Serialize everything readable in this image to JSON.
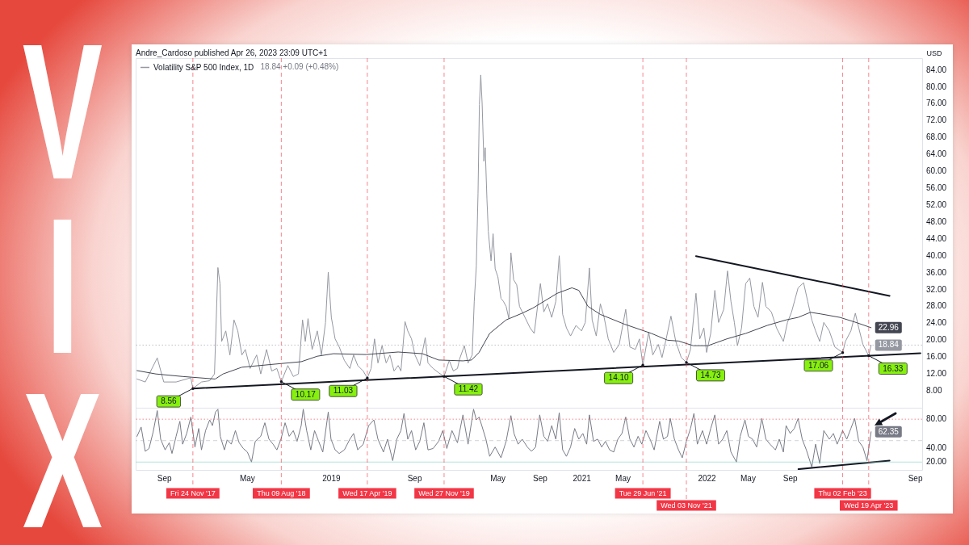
{
  "chart_data": [
    {
      "type": "line",
      "title": "VIX",
      "subtitle": "Andre_Cardoso published Apr 26, 2023 23:09 UTC+1",
      "ylabel": "USD",
      "legend": "top left",
      "tick_labels": "y",
      "xlim": [
        "2017-06-10",
        "2023-09-22"
      ],
      "ylim": [
        4,
        86.8
      ],
      "yticks": [
        {
          "value": 8,
          "label": "8.00"
        },
        {
          "value": 12,
          "label": "12.00"
        },
        {
          "value": 16,
          "label": "16.00"
        },
        {
          "value": 20,
          "label": "20.00"
        },
        {
          "value": 24,
          "label": "24.00"
        },
        {
          "value": 28,
          "label": "28.00"
        },
        {
          "value": 32,
          "label": "32.00"
        },
        {
          "value": 36,
          "label": "36.00"
        },
        {
          "value": 40,
          "label": "40.00"
        },
        {
          "value": 44,
          "label": "44.00"
        },
        {
          "value": 48,
          "label": "48.00"
        },
        {
          "value": 52,
          "label": "52.00"
        },
        {
          "value": 56,
          "label": "56.00"
        },
        {
          "value": 60,
          "label": "60.00"
        },
        {
          "value": 64,
          "label": "64.00"
        },
        {
          "value": 68,
          "label": "68.00"
        },
        {
          "value": 72,
          "label": "72.00"
        },
        {
          "value": 76,
          "label": "76.00"
        },
        {
          "value": 80,
          "label": "80.00"
        },
        {
          "value": 84,
          "label": "84.00"
        }
      ],
      "annotations": [
        "18.84 +0.09 (+0.48%)",
        {
          "text": "8.56",
          "x": "2017-11-24",
          "y": 8.56
        },
        {
          "text": "10.17",
          "x": "2018-08-09",
          "y": 10.17
        },
        {
          "text": "11.03",
          "x": "2019-04-17",
          "y": 11.03
        },
        {
          "text": "11.42",
          "x": "2019-11-27",
          "y": 11.42
        },
        {
          "text": "14.10",
          "x": "2021-06-29",
          "y": 14.1
        },
        {
          "text": "14.73",
          "x": "2021-11-03",
          "y": 14.73
        },
        {
          "text": "17.06",
          "x": "2023-02-02",
          "y": 17.06
        },
        {
          "text": "16.33",
          "x": "2023-04-19",
          "y": 16.33
        }
      ],
      "series": [
        {
          "name": "Volatility S&P 500 Index, 1D",
          "color": "#9598a1",
          "x": [
            "2017-06-14",
            "2017-07-08",
            "2017-08-12",
            "2017-08-31",
            "2017-10-06",
            "2017-11-18",
            "2017-11-24",
            "2017-12-19",
            "2018-01-12",
            "2018-01-26",
            "2018-02-05",
            "2018-02-11",
            "2018-02-16",
            "2018-02-28",
            "2018-03-12",
            "2018-03-24",
            "2018-04-04",
            "2018-04-16",
            "2018-04-26",
            "2018-05-10",
            "2018-05-29",
            "2018-06-10",
            "2018-06-27",
            "2018-07-12",
            "2018-07-27",
            "2018-08-09",
            "2018-08-28",
            "2018-09-13",
            "2018-09-28",
            "2018-10-10",
            "2018-10-18",
            "2018-10-26",
            "2018-11-07",
            "2018-11-22",
            "2018-12-04",
            "2018-12-16",
            "2018-12-24",
            "2019-01-02",
            "2019-01-13",
            "2019-01-25",
            "2019-02-09",
            "2019-02-25",
            "2019-03-08",
            "2019-03-20",
            "2019-04-05",
            "2019-04-17",
            "2019-04-28",
            "2019-05-08",
            "2019-05-18",
            "2019-05-30",
            "2019-06-11",
            "2019-06-22",
            "2019-07-04",
            "2019-07-16",
            "2019-07-24",
            "2019-08-05",
            "2019-08-13",
            "2019-08-24",
            "2019-09-03",
            "2019-09-17",
            "2019-10-03",
            "2019-10-11",
            "2019-10-26",
            "2019-11-11",
            "2019-11-27",
            "2019-12-12",
            "2019-12-24",
            "2020-01-05",
            "2020-01-11",
            "2020-01-25",
            "2020-02-05",
            "2020-02-17",
            "2020-02-23",
            "2020-02-29",
            "2020-03-05",
            "2020-03-09",
            "2020-03-13",
            "2020-03-17",
            "2020-03-22",
            "2020-03-26",
            "2020-03-31",
            "2020-04-04",
            "2020-04-12",
            "2020-04-18",
            "2020-04-24",
            "2020-05-02",
            "2020-05-11",
            "2020-05-18",
            "2020-05-26",
            "2020-06-03",
            "2020-06-09",
            "2020-06-17",
            "2020-06-26",
            "2020-07-04",
            "2020-07-20",
            "2020-08-04",
            "2020-08-16",
            "2020-09-03",
            "2020-09-13",
            "2020-09-24",
            "2020-10-06",
            "2020-10-18",
            "2020-10-28",
            "2020-11-07",
            "2020-11-18",
            "2020-11-30",
            "2020-12-16",
            "2021-01-01",
            "2021-01-12",
            "2021-01-24",
            "2021-02-01",
            "2021-02-13",
            "2021-02-25",
            "2021-03-08",
            "2021-03-20",
            "2021-04-05",
            "2021-04-21",
            "2021-05-10",
            "2021-05-22",
            "2021-06-07",
            "2021-06-19",
            "2021-06-29",
            "2021-07-16",
            "2021-07-28",
            "2021-08-13",
            "2021-08-24",
            "2021-09-05",
            "2021-09-19",
            "2021-10-03",
            "2021-10-19",
            "2021-11-03",
            "2021-11-15",
            "2021-12-01",
            "2021-12-12",
            "2021-12-24",
            "2022-01-01",
            "2022-01-13",
            "2022-01-25",
            "2022-02-05",
            "2022-02-20",
            "2022-03-03",
            "2022-03-13",
            "2022-03-23",
            "2022-04-01",
            "2022-04-13",
            "2022-04-25",
            "2022-05-07",
            "2022-05-19",
            "2022-05-31",
            "2022-06-13",
            "2022-06-23",
            "2022-07-09",
            "2022-07-24",
            "2022-08-13",
            "2022-08-25",
            "2022-09-06",
            "2022-09-25",
            "2022-10-11",
            "2022-10-23",
            "2022-11-04",
            "2022-11-15",
            "2022-11-27",
            "2022-12-09",
            "2022-12-25",
            "2023-01-10",
            "2023-02-02",
            "2023-02-10",
            "2023-02-26",
            "2023-03-11",
            "2023-03-21",
            "2023-04-02",
            "2023-04-19",
            "2023-04-26"
          ],
          "values": [
            10.8,
            10.1,
            15.8,
            10.1,
            10.1,
            11.1,
            8.56,
            10.1,
            10.4,
            12,
            37.2,
            33.4,
            19.7,
            22.2,
            16.5,
            24.8,
            22.2,
            16.5,
            17.8,
            13.3,
            16.5,
            12,
            17.8,
            12.7,
            13.3,
            10.17,
            14,
            11.4,
            12,
            24.8,
            19.7,
            25.1,
            17.8,
            22.2,
            16.5,
            24.2,
            36.1,
            25.4,
            20.3,
            18.4,
            15.2,
            13.3,
            16.5,
            14,
            12.7,
            11.03,
            13.3,
            20.3,
            14.6,
            18.7,
            14.6,
            16.5,
            12.7,
            14,
            12.7,
            24.4,
            22.2,
            20.3,
            16.5,
            14,
            20.6,
            14.6,
            13.3,
            12.3,
            11.42,
            15.2,
            12.7,
            13.3,
            15.5,
            18.7,
            14.6,
            16.5,
            29.2,
            37.5,
            54.7,
            75.8,
            82.8,
            76.1,
            62.4,
            65.6,
            53.4,
            45.8,
            38.8,
            45.2,
            36.9,
            35,
            29.9,
            29.2,
            28,
            25.1,
            40.7,
            34.3,
            33.1,
            28,
            25.4,
            22.9,
            21.6,
            33.4,
            26.7,
            28.6,
            25.4,
            29.2,
            40,
            26.1,
            22.9,
            21,
            23.5,
            22.2,
            24.2,
            37.1,
            24.8,
            21,
            28.6,
            25.4,
            20.3,
            17.1,
            19,
            27.3,
            18.4,
            17.8,
            20.3,
            14.1,
            21.9,
            16.5,
            19,
            15.9,
            20.3,
            25.7,
            19.7,
            15.9,
            14.73,
            17.8,
            31.1,
            20.3,
            22.9,
            17.1,
            21.6,
            31.8,
            24.2,
            27.3,
            36.4,
            29.2,
            24.2,
            18.7,
            22.9,
            33.4,
            34.7,
            28,
            25.4,
            33.7,
            28,
            26.7,
            22.9,
            19.7,
            24.2,
            26.7,
            32.4,
            33.6,
            29.2,
            24.8,
            22.2,
            19.7,
            24.2,
            22.2,
            18.4,
            17.06,
            19.7,
            22.2,
            26.4,
            22.9,
            19,
            16.33,
            18.84
          ],
          "value_labels": [
            null,
            null,
            null,
            null,
            null,
            null,
            null,
            null,
            null,
            null,
            null,
            null,
            null,
            null,
            null,
            null,
            null,
            null,
            null,
            null,
            null,
            null,
            null,
            null,
            null,
            null,
            null,
            null,
            null,
            null,
            null,
            null,
            null,
            null,
            null,
            null,
            null,
            null,
            null,
            null,
            null,
            null,
            null,
            null,
            null,
            null,
            null,
            null,
            null,
            null,
            null,
            null,
            null,
            null,
            null,
            null,
            null,
            null,
            null,
            null,
            null,
            null,
            null,
            null,
            null,
            null,
            null,
            null,
            null,
            null,
            null,
            null,
            null,
            null,
            null,
            null,
            null,
            null,
            null,
            null,
            null,
            null,
            null,
            null,
            null,
            null,
            null,
            null,
            null,
            null,
            null,
            null,
            null,
            null,
            null,
            null,
            null,
            null,
            null,
            null,
            null,
            null,
            null,
            null,
            null,
            null,
            null,
            null,
            null,
            null,
            null,
            null,
            null,
            null,
            null,
            null,
            null,
            null,
            null,
            null,
            null,
            null,
            null,
            null,
            null,
            null,
            null,
            null,
            null,
            null,
            null,
            null,
            null,
            null,
            null,
            null,
            null,
            null,
            null,
            null,
            null,
            null,
            null,
            null,
            null,
            null,
            null,
            null,
            null,
            null,
            null,
            null,
            null,
            null,
            null,
            null,
            null,
            null,
            null,
            null,
            null,
            null,
            null,
            null,
            null,
            null,
            null,
            null,
            null,
            null,
            null,
            null,
            "18.84"
          ]
        },
        {
          "color": "#434651",
          "x": [
            "2017-06-14",
            "2017-08-08",
            "2017-10-25",
            "2018-01-28",
            "2018-02-20",
            "2018-04-16",
            "2018-07-04",
            "2018-10-06",
            "2018-11-22",
            "2019-01-08",
            "2019-04-13",
            "2019-07-16",
            "2019-09-25",
            "2019-11-11",
            "2020-01-21",
            "2020-02-15",
            "2020-03-08",
            "2020-04-08",
            "2020-05-26",
            "2020-07-12",
            "2020-08-12",
            "2020-10-22",
            "2020-12-04",
            "2020-12-24",
            "2021-01-20",
            "2021-02-25",
            "2021-05-06",
            "2021-07-24",
            "2021-09-09",
            "2021-10-11",
            "2021-11-23",
            "2022-01-05",
            "2022-03-01",
            "2022-04-25",
            "2022-06-27",
            "2022-08-21",
            "2022-09-25",
            "2022-10-31",
            "2022-12-01",
            "2023-01-25",
            "2023-03-13",
            "2023-04-26"
          ],
          "values": [
            12.8,
            12,
            11.4,
            10.8,
            12,
            13.6,
            14.2,
            14.9,
            16.2,
            16.8,
            16.6,
            17.2,
            16.8,
            15.3,
            15.1,
            15.3,
            17.1,
            21.6,
            24.8,
            26.4,
            27.6,
            31.1,
            32.4,
            31.8,
            28,
            26.1,
            23.8,
            21.6,
            20,
            19.8,
            18.7,
            18.7,
            20.3,
            21.6,
            23.5,
            24.8,
            25.4,
            26.6,
            26.2,
            25.4,
            24.2,
            22.96
          ],
          "value_labels": [
            null,
            null,
            null,
            null,
            null,
            null,
            null,
            null,
            null,
            null,
            null,
            null,
            null,
            null,
            null,
            null,
            null,
            null,
            null,
            null,
            null,
            null,
            null,
            null,
            null,
            null,
            null,
            null,
            null,
            null,
            null,
            null,
            null,
            null,
            null,
            null,
            null,
            null,
            null,
            null,
            null,
            "22.96"
          ]
        },
        {
          "color": "#131722",
          "x": [
            "2017-11-24",
            "2023-09-17"
          ],
          "values": [
            8.56,
            16.9
          ]
        },
        {
          "color": "#131722",
          "x": [
            "2021-12-01",
            "2023-06-19"
          ],
          "values": [
            39.9,
            30.5
          ]
        }
      ],
      "ref_lines": [
        {
          "axis": "x",
          "value": "2017-11-24",
          "color": "#f23645",
          "line_style": "dashed"
        },
        {
          "axis": "x",
          "value": "2018-08-09",
          "color": "#f23645",
          "line_style": "dashed"
        },
        {
          "axis": "x",
          "value": "2019-04-17",
          "color": "#f23645",
          "line_style": "dashed"
        },
        {
          "axis": "x",
          "value": "2019-11-27",
          "color": "#f23645",
          "line_style": "dashed"
        },
        {
          "axis": "x",
          "value": "2021-06-29",
          "color": "#f23645",
          "line_style": "dashed"
        },
        {
          "axis": "x",
          "value": "2021-11-03",
          "color": "#f23645",
          "line_style": "dashed"
        },
        {
          "axis": "x",
          "value": "2023-02-02",
          "color": "#f23645",
          "line_style": "dashed"
        },
        {
          "axis": "x",
          "value": "2023-04-19",
          "color": "#f23645",
          "line_style": "dashed"
        },
        {
          "axis": "y",
          "value": 18.84,
          "color": "#9598a1",
          "line_style": "dotted"
        }
      ]
    },
    {
      "type": "line",
      "xlim": [
        "2017-06-10",
        "2023-09-22"
      ],
      "ylim": [
        9,
        96
      ],
      "xticks": [
        {
          "value": "2017-09-01",
          "label": "Sep"
        },
        {
          "value": "2018-05-01",
          "label": "May"
        },
        {
          "value": "2019-01-01",
          "label": "2019"
        },
        {
          "value": "2019-09-01",
          "label": "Sep"
        },
        {
          "value": "2020-05-01",
          "label": "May"
        },
        {
          "value": "2020-09-01",
          "label": "Sep"
        },
        {
          "value": "2021-01-01",
          "label": "2021"
        },
        {
          "value": "2021-05-01",
          "label": "May"
        },
        {
          "value": "2022-01-01",
          "label": "2022"
        },
        {
          "value": "2022-05-01",
          "label": "May"
        },
        {
          "value": "2022-09-01",
          "label": "Sep"
        },
        {
          "value": "2023-09-01",
          "label": "Sep"
        }
      ],
      "yticks": [
        {
          "value": 20,
          "label": "20.00"
        },
        {
          "value": 40,
          "label": "40.00"
        },
        {
          "value": 80,
          "label": "80.00"
        }
      ],
      "series": [
        {
          "color": "#787b86",
          "x": [
            "2017-06-14",
            "2017-06-26",
            "2017-07-08",
            "2017-07-19",
            "2017-07-31",
            "2017-08-12",
            "2017-08-22",
            "2017-09-04",
            "2017-09-16",
            "2017-09-24",
            "2017-10-06",
            "2017-10-17",
            "2017-10-25",
            "2017-11-06",
            "2017-11-18",
            "2017-11-30",
            "2017-12-11",
            "2017-12-19",
            "2017-12-31",
            "2018-01-12",
            "2018-01-20",
            "2018-01-29",
            "2018-02-05",
            "2018-02-12",
            "2018-02-24",
            "2018-03-04",
            "2018-03-16",
            "2018-03-28",
            "2018-04-08",
            "2018-04-20",
            "2018-05-02",
            "2018-05-14",
            "2018-05-25",
            "2018-06-10",
            "2018-06-22",
            "2018-07-04",
            "2018-07-16",
            "2018-07-27",
            "2018-08-08",
            "2018-08-20",
            "2018-09-01",
            "2018-09-13",
            "2018-09-24",
            "2018-10-06",
            "2018-10-12",
            "2018-10-22",
            "2018-11-03",
            "2018-11-14",
            "2018-11-26",
            "2018-12-08",
            "2018-12-24",
            "2019-01-01",
            "2019-01-13",
            "2019-01-25",
            "2019-02-09",
            "2019-02-25",
            "2019-03-08",
            "2019-03-20",
            "2019-04-05",
            "2019-04-21",
            "2019-05-06",
            "2019-05-18",
            "2019-06-03",
            "2019-06-15",
            "2019-06-30",
            "2019-07-12",
            "2019-07-24",
            "2019-08-02",
            "2019-08-13",
            "2019-08-24",
            "2019-09-05",
            "2019-09-17",
            "2019-09-29",
            "2019-10-11",
            "2019-10-26",
            "2019-11-11",
            "2019-11-23",
            "2019-12-05",
            "2019-12-20",
            "2020-01-05",
            "2020-01-21",
            "2020-02-05",
            "2020-02-21",
            "2020-02-29",
            "2020-03-08",
            "2020-03-16",
            "2020-03-28",
            "2020-04-08",
            "2020-04-24",
            "2020-05-11",
            "2020-05-26",
            "2020-06-09",
            "2020-06-18",
            "2020-06-30",
            "2020-07-12",
            "2020-07-27",
            "2020-08-08",
            "2020-08-20",
            "2020-09-01",
            "2020-09-13",
            "2020-09-24",
            "2020-10-06",
            "2020-10-18",
            "2020-10-28",
            "2020-11-07",
            "2020-11-18",
            "2020-11-30",
            "2020-12-12",
            "2020-12-24",
            "2021-01-05",
            "2021-01-16",
            "2021-01-24",
            "2021-02-05",
            "2021-02-17",
            "2021-03-01",
            "2021-03-12",
            "2021-03-24",
            "2021-04-05",
            "2021-04-17",
            "2021-04-29",
            "2021-05-10",
            "2021-05-22",
            "2021-06-03",
            "2021-06-15",
            "2021-06-26",
            "2021-07-08",
            "2021-07-20",
            "2021-08-01",
            "2021-08-17",
            "2021-08-28",
            "2021-09-09",
            "2021-09-17",
            "2021-09-29",
            "2021-10-11",
            "2021-10-22",
            "2021-11-03",
            "2021-11-15",
            "2021-11-25",
            "2021-12-05",
            "2021-12-20",
            "2022-01-01",
            "2022-01-13",
            "2022-01-25",
            "2022-02-05",
            "2022-02-17",
            "2022-03-01",
            "2022-03-13",
            "2022-03-29",
            "2022-04-09",
            "2022-04-23",
            "2022-05-03",
            "2022-05-15",
            "2022-05-27",
            "2022-06-11",
            "2022-06-23",
            "2022-07-05",
            "2022-07-21",
            "2022-08-01",
            "2022-08-13",
            "2022-08-21",
            "2022-09-02",
            "2022-09-14",
            "2022-09-25",
            "2022-10-07",
            "2022-10-19",
            "2022-11-04",
            "2022-11-15",
            "2022-11-27",
            "2022-12-09",
            "2022-12-25",
            "2023-01-06",
            "2023-01-17",
            "2023-02-02",
            "2023-02-14",
            "2023-02-26",
            "2023-03-09",
            "2023-03-21",
            "2023-04-02",
            "2023-04-14",
            "2023-04-26"
          ],
          "values": [
            56,
            69,
            35,
            39,
            62,
            92,
            52,
            37,
            47,
            32,
            56,
            77,
            45,
            60,
            83,
            41,
            67,
            37,
            64,
            79,
            71,
            90,
            94,
            56,
            37,
            51,
            45,
            64,
            47,
            39,
            34,
            20,
            49,
            56,
            75,
            52,
            45,
            37,
            52,
            75,
            56,
            64,
            49,
            71,
            94,
            64,
            37,
            64,
            49,
            34,
            90,
            52,
            37,
            32,
            37,
            52,
            60,
            37,
            45,
            71,
            79,
            52,
            34,
            52,
            22,
            52,
            64,
            88,
            52,
            64,
            37,
            49,
            75,
            37,
            39,
            49,
            64,
            39,
            64,
            47,
            86,
            45,
            94,
            79,
            83,
            71,
            52,
            28,
            41,
            26,
            49,
            85,
            60,
            45,
            52,
            41,
            35,
            41,
            86,
            56,
            49,
            71,
            52,
            89,
            37,
            28,
            41,
            67,
            52,
            60,
            45,
            86,
            49,
            52,
            41,
            49,
            37,
            34,
            52,
            60,
            83,
            52,
            41,
            56,
            45,
            64,
            52,
            37,
            77,
            52,
            56,
            81,
            52,
            37,
            26,
            49,
            67,
            88,
            45,
            64,
            45,
            67,
            86,
            45,
            52,
            64,
            34,
            20,
            56,
            79,
            56,
            52,
            41,
            81,
            52,
            45,
            37,
            52,
            34,
            71,
            60,
            67,
            81,
            52,
            37,
            13,
            45,
            18,
            64,
            52,
            60,
            45,
            64,
            52,
            67,
            81,
            49,
            41,
            22,
            62.35
          ],
          "value_labels": [
            null,
            null,
            null,
            null,
            null,
            null,
            null,
            null,
            null,
            null,
            null,
            null,
            null,
            null,
            null,
            null,
            null,
            null,
            null,
            null,
            null,
            null,
            null,
            null,
            null,
            null,
            null,
            null,
            null,
            null,
            null,
            null,
            null,
            null,
            null,
            null,
            null,
            null,
            null,
            null,
            null,
            null,
            null,
            null,
            null,
            null,
            null,
            null,
            null,
            null,
            null,
            null,
            null,
            null,
            null,
            null,
            null,
            null,
            null,
            null,
            null,
            null,
            null,
            null,
            null,
            null,
            null,
            null,
            null,
            null,
            null,
            null,
            null,
            null,
            null,
            null,
            null,
            null,
            null,
            null,
            null,
            null,
            null,
            null,
            null,
            null,
            null,
            null,
            null,
            null,
            null,
            null,
            null,
            null,
            null,
            null,
            null,
            null,
            null,
            null,
            null,
            null,
            null,
            null,
            null,
            null,
            null,
            null,
            null,
            null,
            null,
            null,
            null,
            null,
            null,
            null,
            null,
            null,
            null,
            null,
            null,
            null,
            null,
            null,
            null,
            null,
            null,
            null,
            null,
            null,
            null,
            null,
            null,
            null,
            null,
            null,
            null,
            null,
            null,
            null,
            null,
            null,
            null,
            null,
            null,
            null,
            null,
            null,
            null,
            null,
            null,
            null,
            null,
            null,
            null,
            null,
            null,
            null,
            null,
            null,
            null,
            null,
            null,
            null,
            null,
            null,
            null,
            null,
            null,
            null,
            null,
            null,
            null,
            null,
            null,
            null,
            null,
            null,
            null,
            "62.35"
          ]
        },
        {
          "color": "#131722",
          "x": [
            "2022-09-26",
            "2023-06-19"
          ],
          "values": [
            10,
            22
          ]
        }
      ],
      "ref_lines": [
        {
          "axis": "y",
          "value": 80,
          "color": "#f23645",
          "line_style": "dotted"
        },
        {
          "axis": "y",
          "value": 50,
          "color": "#b2b5be",
          "line_style": "dashed"
        },
        {
          "axis": "y",
          "value": 20,
          "color": "#7fcfc6"
        },
        {
          "axis": "x",
          "value": "2017-11-24",
          "label": "Fri 24 Nov '17",
          "color": "#f23645",
          "line_style": "dashed"
        },
        {
          "axis": "x",
          "value": "2018-08-09",
          "label": "Thu 09 Aug '18",
          "color": "#f23645",
          "line_style": "dashed"
        },
        {
          "axis": "x",
          "value": "2019-04-17",
          "label": "Wed 17 Apr '19",
          "color": "#f23645",
          "line_style": "dashed"
        },
        {
          "axis": "x",
          "value": "2019-11-27",
          "label": "Wed 27 Nov '19",
          "color": "#f23645",
          "line_style": "dashed"
        },
        {
          "axis": "x",
          "value": "2021-06-29",
          "label": "Tue 29 Jun '21",
          "color": "#f23645",
          "line_style": "dashed"
        },
        {
          "axis": "x",
          "value": "2021-11-03",
          "label": "Wed 03 Nov '21",
          "color": "#f23645",
          "line_style": "dashed"
        },
        {
          "axis": "x",
          "value": "2023-02-02",
          "label": "Thu 02 Feb '23",
          "color": "#f23645",
          "line_style": "dashed"
        },
        {
          "axis": "x",
          "value": "2023-04-19",
          "label": "Wed 19 Apr '23",
          "color": "#f23645",
          "line_style": "dashed"
        }
      ]
    }
  ]
}
